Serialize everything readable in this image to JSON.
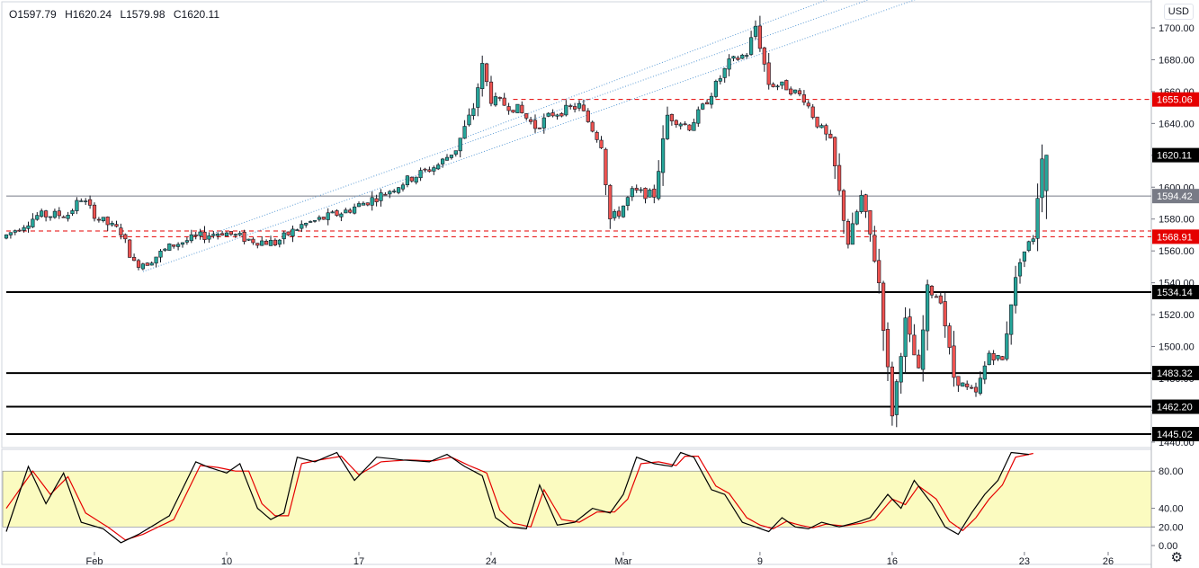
{
  "header": {
    "open": "O1597.79",
    "high": "H1620.24",
    "low": "L1579.98",
    "close": "C1620.11"
  },
  "currency_label": "USD",
  "settings_icon": "gear-icon",
  "colors": {
    "up": "#26a69a",
    "down": "#ef5350",
    "wick": "#131722",
    "red_label": "#e50000",
    "black_label": "#000000",
    "grey_label": "#787b86",
    "channel": "#5b9bd5",
    "band_fill": "#fbfbc0",
    "stoch_k": "#000000",
    "stoch_d": "#e50000"
  },
  "chart_data": [
    {
      "type": "candlestick",
      "price_axis_ticks": [
        1440,
        1460,
        1480,
        1500,
        1520,
        1540,
        1560,
        1580,
        1600,
        1620,
        1640,
        1660,
        1680,
        1700
      ],
      "ylim": [
        1437,
        1711
      ],
      "x_tick_labels": [
        {
          "label": "Feb",
          "bar": 20
        },
        {
          "label": "10",
          "bar": 50
        },
        {
          "label": "17",
          "bar": 80
        },
        {
          "label": "24",
          "bar": 110
        },
        {
          "label": "Mar",
          "bar": 140
        },
        {
          "label": "9",
          "bar": 171
        },
        {
          "label": "16",
          "bar": 201
        },
        {
          "label": "23",
          "bar": 231
        },
        {
          "label": "26",
          "bar": 250
        }
      ],
      "price_labels": [
        {
          "text": "1655.06",
          "value": 1655.06,
          "style": "red"
        },
        {
          "text": "1620.11",
          "value": 1620.11,
          "style": "black"
        },
        {
          "text": "1594.42",
          "value": 1594.42,
          "style": "grey"
        },
        {
          "text": "1568.91",
          "value": 1568.91,
          "style": "red"
        },
        {
          "text": "1534.14",
          "value": 1534.14,
          "style": "black"
        },
        {
          "text": "1483.32",
          "value": 1483.32,
          "style": "black"
        },
        {
          "text": "1462.20",
          "value": 1462.2,
          "style": "black"
        },
        {
          "text": "1445.02",
          "value": 1445.02,
          "style": "black"
        }
      ],
      "horizontal_lines": [
        {
          "value": 1655.06,
          "style": "red-dashed",
          "from_bar": 115
        },
        {
          "value": 1572.5,
          "style": "red-dashed",
          "from_bar": 0
        },
        {
          "value": 1568.91,
          "style": "red-dashed",
          "from_bar": 22
        },
        {
          "value": 1594.42,
          "style": "grey-solid",
          "from_bar": 0
        },
        {
          "value": 1534.14,
          "style": "black-solid",
          "from_bar": 0
        },
        {
          "value": 1483.32,
          "style": "black-solid",
          "from_bar": 0
        },
        {
          "value": 1462.2,
          "style": "black-solid",
          "from_bar": 0
        },
        {
          "value": 1445.02,
          "style": "black-solid",
          "from_bar": 0
        }
      ],
      "trend_channel": [
        {
          "from": {
            "bar": 31,
            "value": 1547
          },
          "to": {
            "bar": 225,
            "value": 1736
          }
        },
        {
          "from": {
            "bar": 47,
            "value": 1571
          },
          "to": {
            "bar": 203,
            "value": 1725
          }
        },
        {
          "from": {
            "bar": 103,
            "value": 1630
          },
          "to": {
            "bar": 196,
            "value": 1728
          }
        }
      ],
      "keypoints": [
        [
          0,
          1568
        ],
        [
          8,
          1582
        ],
        [
          15,
          1583
        ],
        [
          18,
          1593
        ],
        [
          22,
          1580
        ],
        [
          27,
          1572
        ],
        [
          30,
          1552
        ],
        [
          33,
          1553
        ],
        [
          39,
          1564
        ],
        [
          45,
          1569
        ],
        [
          50,
          1572
        ],
        [
          56,
          1567
        ],
        [
          62,
          1565
        ],
        [
          68,
          1576
        ],
        [
          78,
          1585
        ],
        [
          86,
          1595
        ],
        [
          93,
          1606
        ],
        [
          99,
          1614
        ],
        [
          103,
          1624
        ],
        [
          107,
          1650
        ],
        [
          109,
          1676
        ],
        [
          111,
          1655
        ],
        [
          117,
          1649
        ],
        [
          121,
          1638
        ],
        [
          125,
          1646
        ],
        [
          131,
          1651
        ],
        [
          136,
          1627
        ],
        [
          138,
          1580
        ],
        [
          140,
          1584
        ],
        [
          143,
          1597
        ],
        [
          148,
          1595
        ],
        [
          151,
          1645
        ],
        [
          156,
          1638
        ],
        [
          159,
          1650
        ],
        [
          165,
          1678
        ],
        [
          169,
          1684
        ],
        [
          171,
          1701
        ],
        [
          174,
          1665
        ],
        [
          178,
          1663
        ],
        [
          182,
          1656
        ],
        [
          185,
          1640
        ],
        [
          188,
          1628
        ],
        [
          192,
          1565
        ],
        [
          195,
          1594
        ],
        [
          197,
          1570
        ],
        [
          199,
          1540
        ],
        [
          202,
          1458
        ],
        [
          205,
          1516
        ],
        [
          208,
          1484
        ],
        [
          210,
          1536
        ],
        [
          213,
          1530
        ],
        [
          216,
          1481
        ],
        [
          219,
          1473
        ],
        [
          221,
          1470
        ],
        [
          224,
          1496
        ],
        [
          227,
          1491
        ],
        [
          229,
          1528
        ],
        [
          231,
          1555
        ],
        [
          234,
          1569
        ],
        [
          236,
          1620.11
        ]
      ],
      "ohlc_last": {
        "open": 1597.79,
        "high": 1620.24,
        "low": 1579.98,
        "close": 1620.11
      }
    },
    {
      "type": "line",
      "name": "stochastic",
      "ylim": [
        0,
        100
      ],
      "tick_labels": [
        "80.00",
        "40.00",
        "20.00",
        "0.00"
      ],
      "ticks": [
        80,
        40,
        20,
        0
      ],
      "band": [
        20,
        80
      ],
      "k_keypoints": [
        [
          0,
          15
        ],
        [
          5,
          85
        ],
        [
          9,
          45
        ],
        [
          13,
          78
        ],
        [
          17,
          25
        ],
        [
          22,
          18
        ],
        [
          26,
          3
        ],
        [
          30,
          12
        ],
        [
          37,
          32
        ],
        [
          43,
          90
        ],
        [
          46,
          84
        ],
        [
          50,
          78
        ],
        [
          53,
          88
        ],
        [
          57,
          40
        ],
        [
          60,
          28
        ],
        [
          63,
          35
        ],
        [
          66,
          95
        ],
        [
          70,
          90
        ],
        [
          75,
          100
        ],
        [
          79,
          70
        ],
        [
          84,
          95
        ],
        [
          90,
          92
        ],
        [
          96,
          90
        ],
        [
          100,
          98
        ],
        [
          104,
          85
        ],
        [
          108,
          75
        ],
        [
          111,
          30
        ],
        [
          114,
          20
        ],
        [
          118,
          18
        ],
        [
          121,
          65
        ],
        [
          125,
          22
        ],
        [
          129,
          25
        ],
        [
          133,
          40
        ],
        [
          137,
          35
        ],
        [
          140,
          55
        ],
        [
          143,
          95
        ],
        [
          147,
          88
        ],
        [
          151,
          85
        ],
        [
          153,
          100
        ],
        [
          156,
          95
        ],
        [
          160,
          60
        ],
        [
          163,
          55
        ],
        [
          167,
          25
        ],
        [
          170,
          20
        ],
        [
          173,
          15
        ],
        [
          176,
          30
        ],
        [
          179,
          20
        ],
        [
          182,
          18
        ],
        [
          185,
          25
        ],
        [
          189,
          20
        ],
        [
          193,
          25
        ],
        [
          196,
          30
        ],
        [
          200,
          55
        ],
        [
          203,
          40
        ],
        [
          206,
          70
        ],
        [
          210,
          45
        ],
        [
          213,
          20
        ],
        [
          216,
          12
        ],
        [
          219,
          35
        ],
        [
          222,
          55
        ],
        [
          225,
          70
        ],
        [
          228,
          100
        ],
        [
          232,
          98
        ]
      ],
      "d_keypoints": [
        [
          0,
          40
        ],
        [
          6,
          80
        ],
        [
          10,
          55
        ],
        [
          14,
          74
        ],
        [
          18,
          35
        ],
        [
          23,
          20
        ],
        [
          27,
          6
        ],
        [
          31,
          12
        ],
        [
          38,
          28
        ],
        [
          44,
          86
        ],
        [
          48,
          84
        ],
        [
          52,
          80
        ],
        [
          55,
          80
        ],
        [
          58,
          45
        ],
        [
          61,
          32
        ],
        [
          64,
          32
        ],
        [
          67,
          88
        ],
        [
          71,
          92
        ],
        [
          76,
          96
        ],
        [
          80,
          76
        ],
        [
          85,
          90
        ],
        [
          91,
          92
        ],
        [
          97,
          91
        ],
        [
          101,
          95
        ],
        [
          105,
          86
        ],
        [
          109,
          78
        ],
        [
          112,
          38
        ],
        [
          115,
          24
        ],
        [
          119,
          20
        ],
        [
          122,
          60
        ],
        [
          126,
          28
        ],
        [
          130,
          25
        ],
        [
          134,
          36
        ],
        [
          138,
          36
        ],
        [
          141,
          50
        ],
        [
          144,
          88
        ],
        [
          148,
          90
        ],
        [
          152,
          86
        ],
        [
          154,
          96
        ],
        [
          157,
          96
        ],
        [
          161,
          64
        ],
        [
          164,
          56
        ],
        [
          168,
          30
        ],
        [
          171,
          22
        ],
        [
          174,
          18
        ],
        [
          177,
          26
        ],
        [
          180,
          22
        ],
        [
          183,
          19
        ],
        [
          186,
          23
        ],
        [
          190,
          21
        ],
        [
          194,
          24
        ],
        [
          197,
          28
        ],
        [
          201,
          50
        ],
        [
          204,
          44
        ],
        [
          207,
          64
        ],
        [
          211,
          50
        ],
        [
          214,
          26
        ],
        [
          217,
          16
        ],
        [
          220,
          30
        ],
        [
          223,
          50
        ],
        [
          226,
          65
        ],
        [
          229,
          95
        ],
        [
          233,
          99
        ]
      ]
    }
  ]
}
